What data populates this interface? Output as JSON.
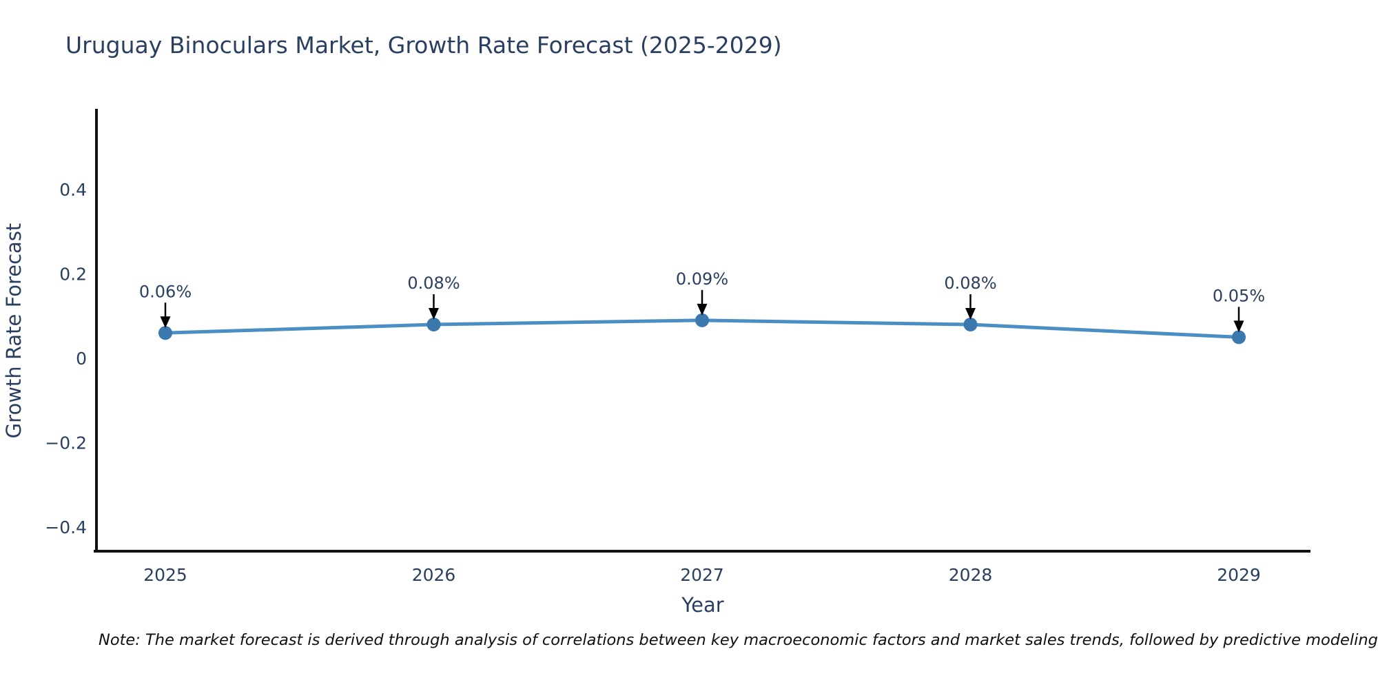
{
  "title": "Uruguay Binoculars Market, Growth Rate Forecast (2025-2029)",
  "note": "Note: The market forecast is derived through analysis of correlations between key macroeconomic factors and market sales trends, followed by predictive modeling to project future sa",
  "chart_data": {
    "type": "line",
    "title": "Uruguay Binoculars Market, Growth Rate Forecast (2025-2029)",
    "xlabel": "Year",
    "ylabel": "Growth Rate Forecast",
    "categories": [
      "2025",
      "2026",
      "2027",
      "2028",
      "2029"
    ],
    "values": [
      0.06,
      0.08,
      0.09,
      0.08,
      0.05
    ],
    "point_labels": [
      "0.06%",
      "0.08%",
      "0.09%",
      "0.08%",
      "0.05%"
    ],
    "yticks": [
      0.4,
      0.2,
      0,
      -0.2,
      -0.4
    ],
    "ytick_labels": [
      "0.4",
      "0.2",
      "0",
      "−0.2",
      "−0.4"
    ],
    "ylim": [
      -0.46,
      0.59
    ],
    "grid": false,
    "legend": "none",
    "annotation_style": "black-arrow-pointing-down-to-point",
    "colors": {
      "line": "#4a8ec4",
      "marker": "#3a78ae",
      "axis": "#111111",
      "text": "#2a3f5f",
      "arrow": "#000000",
      "note_text": "#101010",
      "background": "#ffffff"
    }
  }
}
